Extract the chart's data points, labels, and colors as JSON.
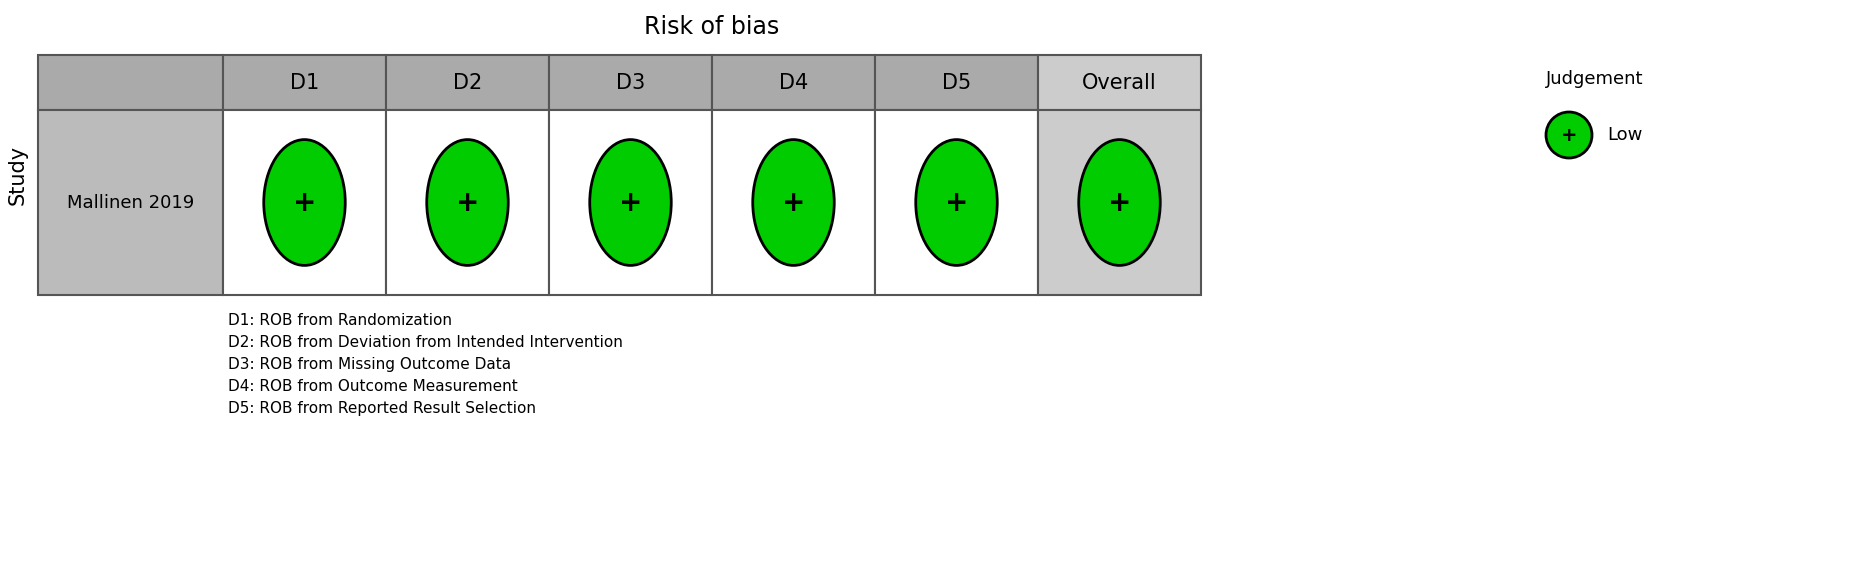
{
  "title": "Risk of bias",
  "col_headers": [
    "D1",
    "D2",
    "D3",
    "D4",
    "D5",
    "Overall"
  ],
  "row_label_header": "Study",
  "studies": [
    "Mallinen 2019"
  ],
  "judgements": [
    [
      "Low",
      "Low",
      "Low",
      "Low",
      "Low",
      "Low"
    ]
  ],
  "judgement_colors": {
    "Low": "#00CC00",
    "High": "#FF0000",
    "Some concerns": "#FFFF00"
  },
  "judgement_symbols": {
    "Low": "+",
    "High": "-",
    "Some concerns": "?"
  },
  "legend_title": "Judgement",
  "legend_items": [
    {
      "label": "Low",
      "color": "#00CC00",
      "symbol": "+"
    }
  ],
  "footnotes": [
    "D1: ROB from Randomization",
    "D2: ROB from Deviation from Intended Intervention",
    "D3: ROB from Missing Outcome Data",
    "D4: ROB from Outcome Measurement",
    "D5: ROB from Reported Result Selection"
  ],
  "header_bg": "#AAAAAA",
  "study_col_bg": "#BBBBBB",
  "overall_col_bg": "#CCCCCC",
  "data_col_bg": "#FFFFFF",
  "border_color": "#555555",
  "text_color": "#000000",
  "figsize": [
    18.56,
    5.87
  ],
  "dpi": 100
}
